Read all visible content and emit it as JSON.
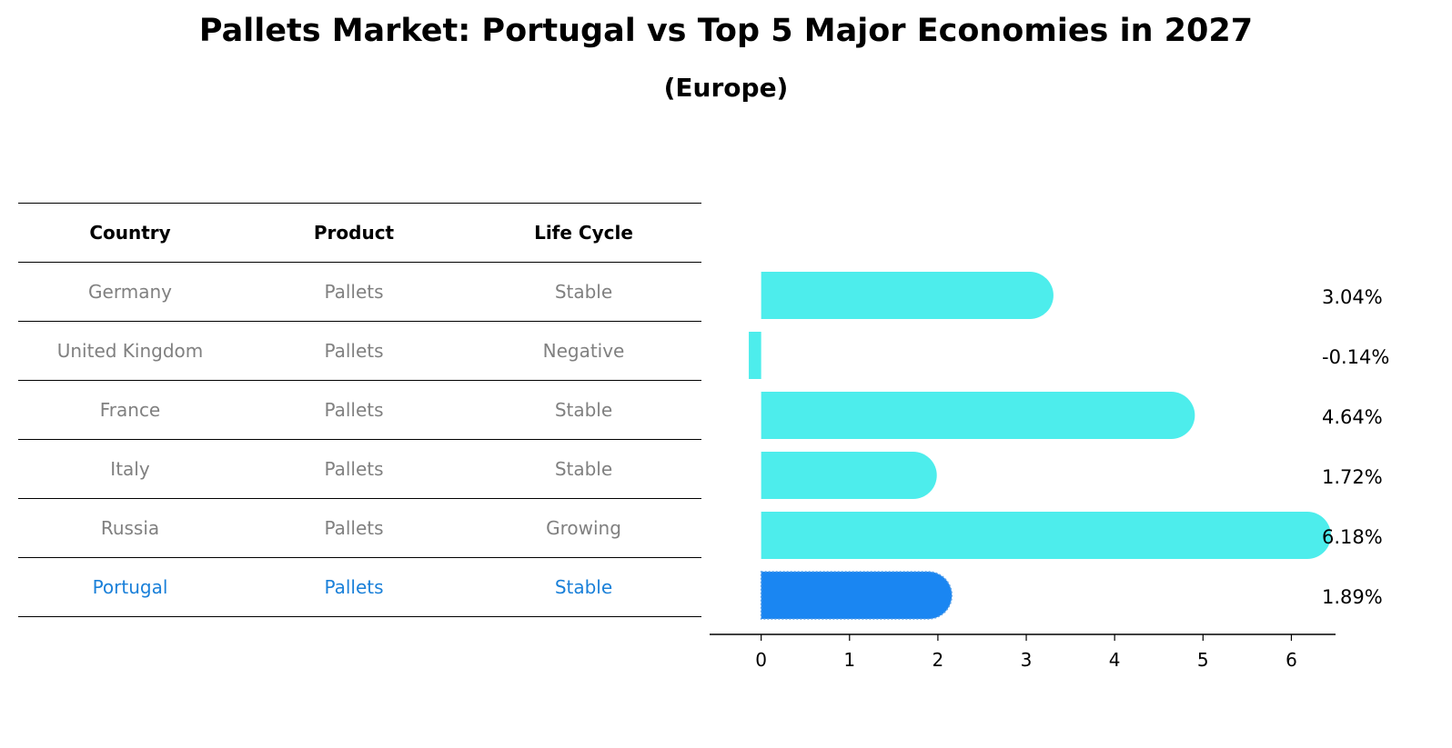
{
  "title": "Pallets Market: Portugal vs Top 5 Major Economies in 2027",
  "subtitle": "(Europe)",
  "table": {
    "headers": [
      "Country",
      "Product",
      "Life Cycle"
    ],
    "rows": [
      {
        "country": "Germany",
        "product": "Pallets",
        "life_cycle": "Stable"
      },
      {
        "country": "United Kingdom",
        "product": "Pallets",
        "life_cycle": "Negative"
      },
      {
        "country": "France",
        "product": "Pallets",
        "life_cycle": "Stable"
      },
      {
        "country": "Italy",
        "product": "Pallets",
        "life_cycle": "Stable"
      },
      {
        "country": "Russia",
        "product": "Pallets",
        "life_cycle": "Growing"
      },
      {
        "country": "Portugal",
        "product": "Pallets",
        "life_cycle": "Stable"
      }
    ]
  },
  "chart_data": {
    "type": "bar",
    "orientation": "horizontal",
    "categories": [
      "Germany",
      "United Kingdom",
      "France",
      "Italy",
      "Russia",
      "Portugal"
    ],
    "values": [
      3.04,
      -0.14,
      4.64,
      1.72,
      6.18,
      1.89
    ],
    "value_labels": [
      "3.04%",
      "-0.14%",
      "4.64%",
      "1.72%",
      "6.18%",
      "1.89%"
    ],
    "highlight_category": "Portugal",
    "xlim": [
      -0.47,
      6.5
    ],
    "xticks": [
      0,
      1,
      2,
      3,
      4,
      5,
      6
    ],
    "xlabel": "",
    "ylabel": "",
    "colors": {
      "default": "#4dedec",
      "highlight": "#1a86f2"
    }
  }
}
